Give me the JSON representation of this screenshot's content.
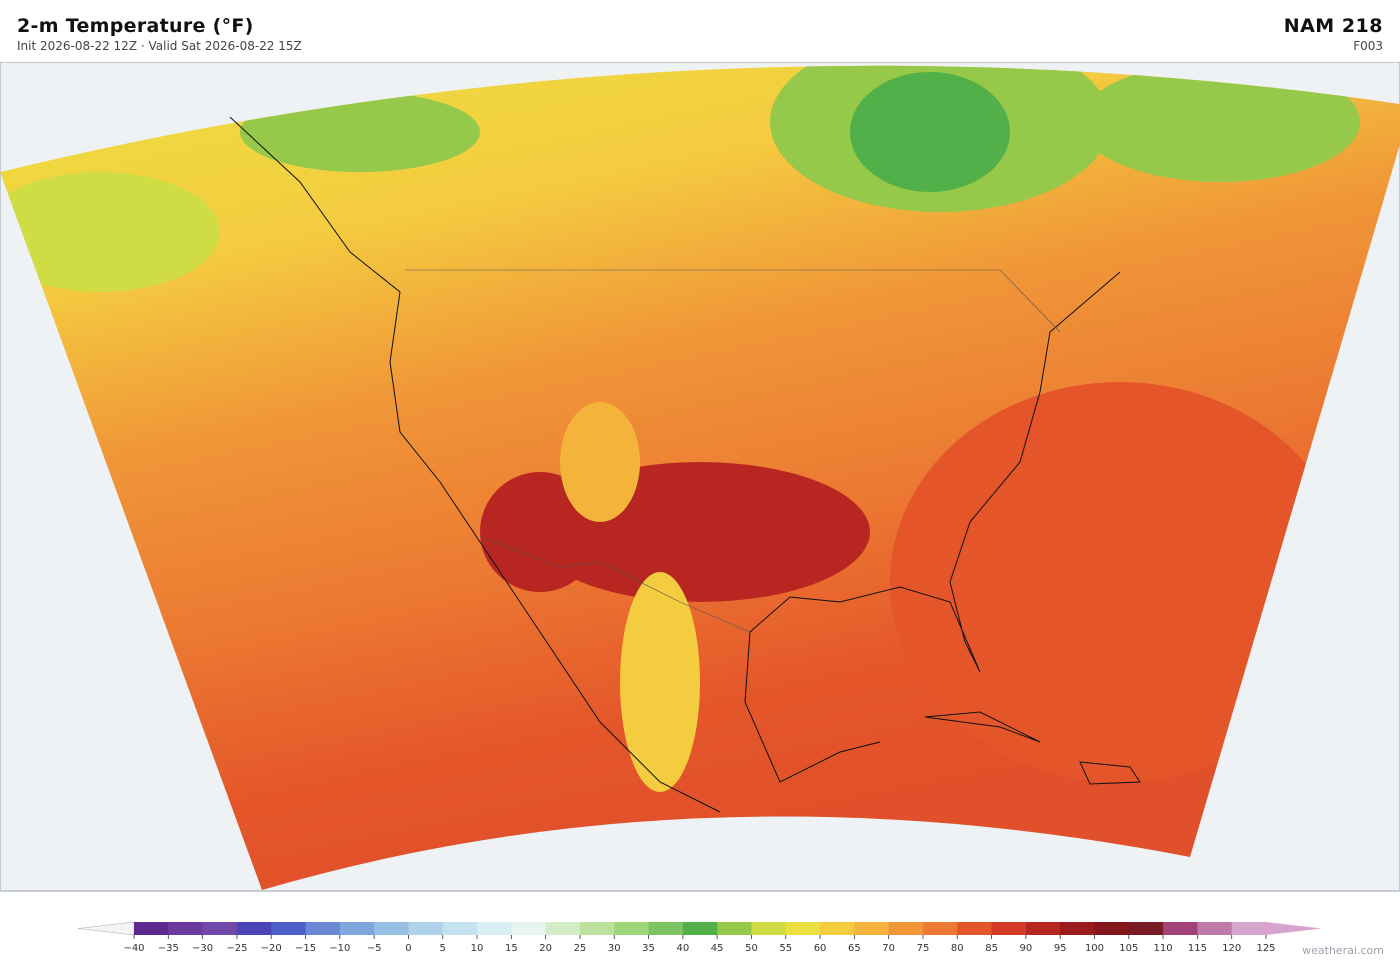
{
  "header": {
    "title": "2-m Temperature  (°F)",
    "subtitle": "Init 2026-08-22 12Z  ·  Valid Sat 2026-08-22 15Z",
    "model": "NAM  218",
    "forecast_hour": "F003"
  },
  "colorbar": {
    "ticks": [
      {
        "value": -40,
        "label": "−40"
      },
      {
        "value": -35,
        "label": "−35"
      },
      {
        "value": -30,
        "label": "−30"
      },
      {
        "value": -25,
        "label": "−25"
      },
      {
        "value": -20,
        "label": "−20"
      },
      {
        "value": -15,
        "label": "−15"
      },
      {
        "value": -10,
        "label": "−10"
      },
      {
        "value": -5,
        "label": "−5"
      },
      0,
      5,
      10,
      15,
      20,
      25,
      30,
      35,
      40,
      45,
      50,
      55,
      60,
      65,
      70,
      75,
      80,
      85,
      90,
      95,
      100,
      105,
      110,
      115,
      120,
      125
    ],
    "colors": [
      "#5b2a8c",
      "#6a3a9c",
      "#7048a8",
      "#4a44b8",
      "#4a60c8",
      "#6a88d4",
      "#7fa6dc",
      "#95c0e4",
      "#aed2ea",
      "#c4e2f0",
      "#d8eef4",
      "#e8f4ee",
      "#d4ecc8",
      "#bce29e",
      "#a0d67a",
      "#7cc462",
      "#52b04a",
      "#96c84a",
      "#d0dc44",
      "#ece040",
      "#f4cc40",
      "#f4b43c",
      "#f09638",
      "#ec7a32",
      "#e4562a",
      "#d23c26",
      "#b82622",
      "#9c1c1e",
      "#82161a",
      "#7a1a24",
      "#a0447a",
      "#c07aaa",
      "#d6a4cc"
    ],
    "under_color": "#f4f4f8",
    "over_color": "#d6a4cc"
  },
  "footer": {
    "credit": "weatherai.com"
  }
}
